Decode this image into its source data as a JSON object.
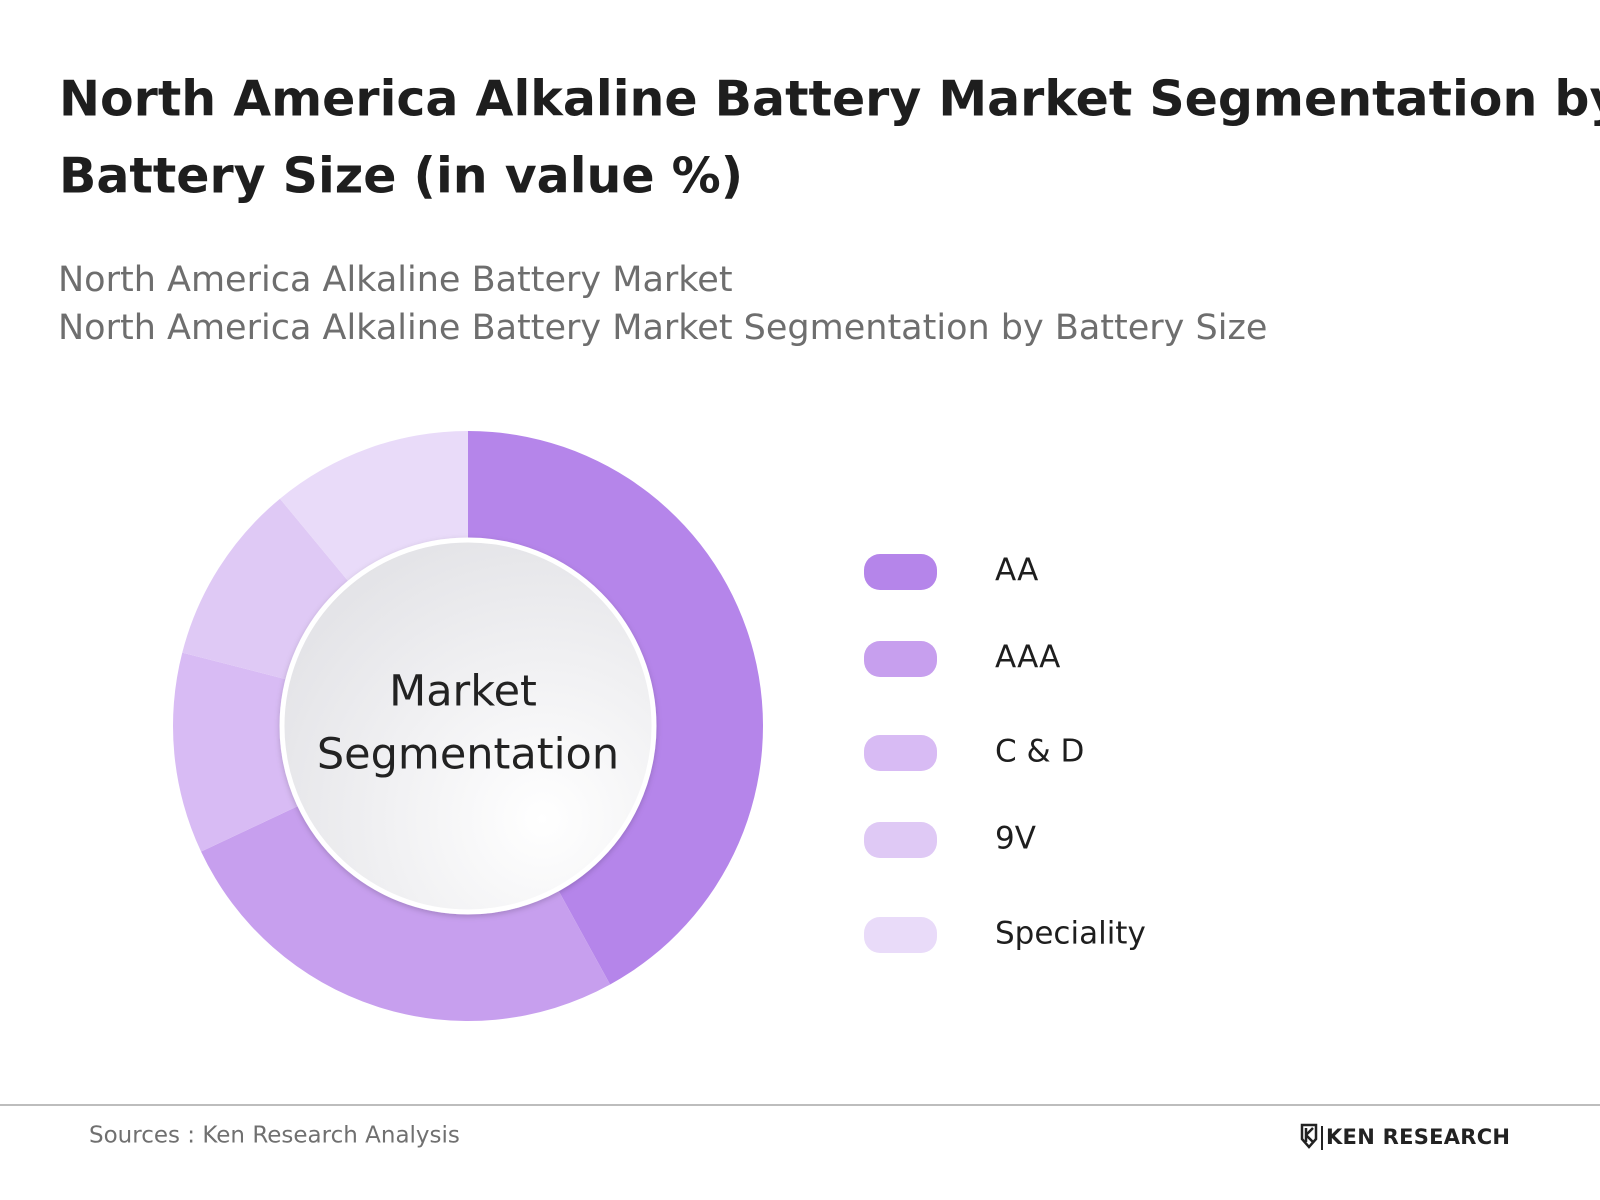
{
  "chart_data": {
    "type": "donut",
    "title": [
      "North America Alkaline Battery Market Segmentation by",
      "Battery Size (in value %)"
    ],
    "subtitle": [
      "North America Alkaline Battery Market",
      "North America Alkaline Battery Market Segmentation by Battery Size"
    ],
    "center_label": [
      "Market",
      "Segmentation"
    ],
    "categories": [
      "AA",
      "AAA",
      "C & D",
      "9V",
      "Speciality"
    ],
    "values": [
      42,
      26,
      11,
      10,
      11
    ],
    "colors": [
      "#b585ea",
      "#c79fee",
      "#d8bbf4",
      "#dfc9f5",
      "#e9dbf9"
    ],
    "legend": "right"
  },
  "footer": {
    "source": "Sources : Ken Research Analysis",
    "logo": "KEN RESEARCH"
  }
}
